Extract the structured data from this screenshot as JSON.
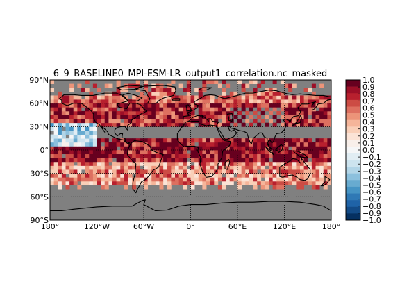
{
  "chart_data": {
    "type": "heatmap",
    "title": "6_9_BASELINE0_MPI-ESM-LR_output1_correlation.nc_masked",
    "map": "global cylindrical projection with coastlines, dotted graticule",
    "x_ticks": [
      "180°",
      "120°W",
      "60°W",
      "0°",
      "60°E",
      "120°E",
      "180°"
    ],
    "x_tick_values": [
      -180,
      -120,
      -60,
      0,
      60,
      120,
      180
    ],
    "y_ticks": [
      "90°N",
      "60°N",
      "30°N",
      "0°",
      "30°S",
      "60°S",
      "90°S"
    ],
    "y_tick_values": [
      90,
      60,
      30,
      0,
      -30,
      -60,
      -90
    ],
    "xlim": [
      -180,
      180
    ],
    "ylim": [
      -90,
      90
    ],
    "grid": true,
    "colormap": "RdBu_r",
    "masked_color": "#808080",
    "colorbar": {
      "orientation": "vertical",
      "position": "right",
      "range": [
        -1.0,
        1.0
      ],
      "ticks": [
        "1.0",
        "0.9",
        "0.8",
        "0.7",
        "0.6",
        "0.5",
        "0.4",
        "0.3",
        "0.2",
        "0.1",
        "0.0",
        "−0.1",
        "−0.2",
        "−0.3",
        "−0.4",
        "−0.5",
        "−0.6",
        "−0.7",
        "−0.8",
        "−0.9",
        "−1.0"
      ],
      "tick_values": [
        1.0,
        0.9,
        0.8,
        0.7,
        0.6,
        0.5,
        0.4,
        0.3,
        0.2,
        0.1,
        0.0,
        -0.1,
        -0.2,
        -0.3,
        -0.4,
        -0.5,
        -0.6,
        -0.7,
        -0.8,
        -0.9,
        -1.0
      ],
      "colors": [
        "#67001f",
        "#9c0f27",
        "#b8202e",
        "#cc4c44",
        "#dd7060",
        "#ec9479",
        "#f5b59a",
        "#f9cfb8",
        "#fbe3d6",
        "#f8efea",
        "#f5f6f7",
        "#e1edf3",
        "#cde4ef",
        "#b2d5e7",
        "#8cc0dd",
        "#68abd0",
        "#4694c4",
        "#2f79b5",
        "#1f63a7",
        "#134b87",
        "#053061"
      ]
    },
    "field_summary": [
      {
        "region": "Arctic / high latitudes (60N-90N)",
        "lat_range": [
          60,
          90
        ],
        "correlation_typical": 0.6,
        "note": "mostly masked over ice-covered ocean; scattered red cells"
      },
      {
        "region": "Northern mid-latitudes (30N-60N)",
        "lat_range": [
          30,
          60
        ],
        "correlation_typical": 0.8,
        "note": "dark red over Eurasia and North America, checkered masked cells over Central Asia"
      },
      {
        "region": "North Pacific subtropics",
        "lat_range": [
          5,
          35
        ],
        "lon_range": [
          -180,
          -120
        ],
        "correlation_typical": -0.3,
        "note": "blue patch of negative correlation"
      },
      {
        "region": "Tropics (15S-15N)",
        "lat_range": [
          -15,
          15
        ],
        "correlation_typical": 0.85,
        "note": "strong positive correlation across Indian Ocean, Atlantic and western Pacific"
      },
      {
        "region": "Southern subtropics / mid-latitudes",
        "lat_range": [
          -50,
          -15
        ],
        "correlation_typical": 0.5,
        "note": "mixed pink and red, scattered blue cells near 40S"
      },
      {
        "region": "Southern Ocean / Antarctica",
        "lat_range": [
          -90,
          -50
        ],
        "correlation_typical": null,
        "note": "masked (grey) with isolated dark cells near the Antarctic coast"
      }
    ]
  }
}
